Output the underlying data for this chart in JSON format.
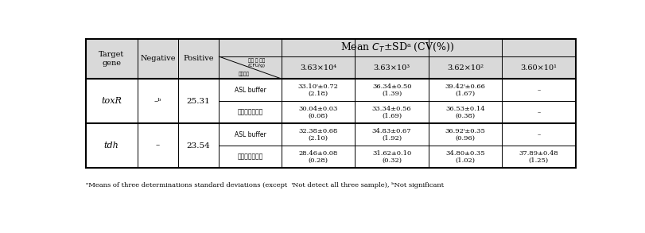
{
  "header_bg": "#d9d9d9",
  "white": "#ffffff",
  "border": "#000000",
  "title": "Mean $\\mathit{C_T}$±SDᵃ (CV(%))",
  "col_header_labels": [
    "3.63×10⁴",
    "3.63×10³",
    "3.62×10²",
    "3.60×10¹"
  ],
  "diagonal_upper": "검종 균 농도\n(CFU/g)",
  "diagonal_lower": "희식용액",
  "footnote": "ᵃMeans of three determinations standard deviations (except  ᵎNot detect all three sample), ᵇNot significant",
  "rows": [
    {
      "gene": "toxR",
      "negative": "–ᵇ",
      "positive": "25.31",
      "subrows": [
        {
          "solution": "ASL buffer",
          "c4": "33.10ᵎ±0.72\n(2.18)",
          "c3": "36.34±0.50\n(1.39)",
          "c2": "39.42ᵎ±0.66\n(1.67)",
          "c1": "–"
        },
        {
          "solution": "멸균생리식염수",
          "c4": "30.04±0.03\n(0.08)",
          "c3": "33.34±0.56\n(1.69)",
          "c2": "36.53±0.14\n(0.38)",
          "c1": "–"
        }
      ]
    },
    {
      "gene": "tdh",
      "negative": "–",
      "positive": "23.54",
      "subrows": [
        {
          "solution": "ASL buffer",
          "c4": "32.38±0.68\n(2.10)",
          "c3": "34.83±0.67\n(1.92)",
          "c2": "36.92ᵎ±0.35\n(0.96)",
          "c1": "–"
        },
        {
          "solution": "멸균생리식염수",
          "c4": "28.46±0.08\n(0.28)",
          "c3": "31.62±0.10\n(0.32)",
          "c2": "34.80±0.35\n(1.02)",
          "c1": "37.89±0.48\n(1.25)"
        }
      ]
    }
  ]
}
